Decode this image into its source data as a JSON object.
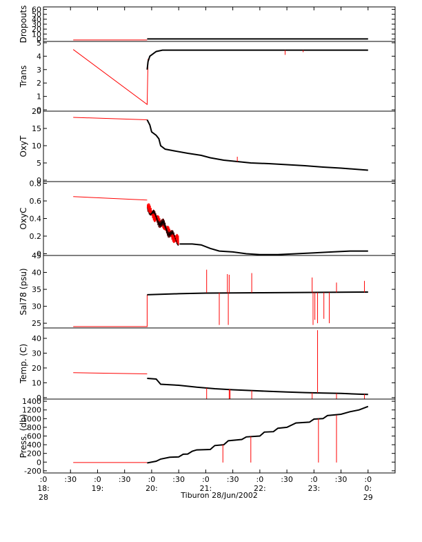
{
  "chart_data": {
    "type": "line",
    "xlabel": "Tiburon 28/Jun/2002",
    "x_ticks": [
      {
        "time": "18:00",
        "top": ":0",
        "bottom": "18:",
        "extra": "28"
      },
      {
        "time": "18:30",
        "top": ":30",
        "bottom": "",
        "extra": ""
      },
      {
        "time": "19:00",
        "top": ":0",
        "bottom": "19:",
        "extra": ""
      },
      {
        "time": "19:30",
        "top": ":30",
        "bottom": "",
        "extra": ""
      },
      {
        "time": "20:00",
        "top": ":0",
        "bottom": "20:",
        "extra": ""
      },
      {
        "time": "20:30",
        "top": ":30",
        "bottom": "",
        "extra": ""
      },
      {
        "time": "21:00",
        "top": ":0",
        "bottom": "21:",
        "extra": ""
      },
      {
        "time": "21:30",
        "top": ":30",
        "bottom": "",
        "extra": ""
      },
      {
        "time": "22:00",
        "top": ":0",
        "bottom": "22:",
        "extra": ""
      },
      {
        "time": "22:30",
        "top": ":30",
        "bottom": "",
        "extra": ""
      },
      {
        "time": "23:00",
        "top": ":0",
        "bottom": "23:",
        "extra": ""
      },
      {
        "time": "23:30",
        "top": ":30",
        "bottom": "",
        "extra": ""
      },
      {
        "time": "00:00",
        "top": ":0",
        "bottom": "0:",
        "extra": "29"
      }
    ],
    "xlim": [
      "18:00",
      "00:30"
    ],
    "colors": {
      "sparse": "#ff0000",
      "dense": "#000000"
    },
    "panels": [
      {
        "ylabel": "Dropouts",
        "ylim": [
          -5,
          65
        ],
        "yticks": [
          0,
          10,
          20,
          30,
          40,
          50,
          60
        ],
        "red": [
          [
            "18:33",
            -2
          ],
          [
            "19:55",
            -2
          ]
        ],
        "black": [
          [
            "19:55",
            0
          ],
          [
            "00:00",
            0
          ]
        ],
        "spikes": []
      },
      {
        "ylabel": "Trans",
        "ylim": [
          -0.1,
          5.1
        ],
        "yticks": [
          0,
          1,
          2,
          3,
          4,
          5
        ],
        "red": [
          [
            "18:33",
            4.5
          ],
          [
            "19:55",
            0.4
          ],
          [
            "19:56",
            3.8
          ]
        ],
        "black": [
          [
            "19:55",
            3.0
          ],
          [
            "19:56",
            3.6
          ],
          [
            "19:58",
            4.0
          ],
          [
            "20:05",
            4.35
          ],
          [
            "20:12",
            4.45
          ],
          [
            "21:00",
            4.45
          ],
          [
            "22:00",
            4.45
          ],
          [
            "00:00",
            4.45
          ]
        ],
        "spikes": [
          [
            "22:28",
            4.45,
            4.1
          ],
          [
            "22:48",
            4.45,
            4.3
          ]
        ]
      },
      {
        "ylabel": "OxyT",
        "ylim": [
          -0.4,
          20
        ],
        "yticks": [
          0,
          5,
          10,
          15,
          20
        ],
        "red": [
          [
            "18:33",
            18.2
          ],
          [
            "19:55",
            17.5
          ]
        ],
        "black": [
          [
            "19:55",
            17.5
          ],
          [
            "19:58",
            16.0
          ],
          [
            "20:00",
            14.0
          ],
          [
            "20:05",
            13.0
          ],
          [
            "20:08",
            12.0
          ],
          [
            "20:10",
            10.0
          ],
          [
            "20:15",
            9.0
          ],
          [
            "20:25",
            8.5
          ],
          [
            "20:40",
            7.8
          ],
          [
            "20:55",
            7.2
          ],
          [
            "21:05",
            6.5
          ],
          [
            "21:20",
            5.8
          ],
          [
            "21:35",
            5.4
          ],
          [
            "21:50",
            5.0
          ],
          [
            "22:10",
            4.8
          ],
          [
            "22:30",
            4.5
          ],
          [
            "22:50",
            4.2
          ],
          [
            "23:10",
            3.8
          ],
          [
            "23:30",
            3.5
          ],
          [
            "23:50",
            3.1
          ],
          [
            "00:00",
            2.9
          ]
        ],
        "spikes": [
          [
            "21:35",
            5.4,
            6.8
          ]
        ]
      },
      {
        "ylabel": "OxyC",
        "ylim": [
          -0.02,
          0.82
        ],
        "yticks": [
          0.0,
          0.2,
          0.4,
          0.6,
          0.8
        ],
        "red": [
          [
            "18:33",
            0.65
          ],
          [
            "19:55",
            0.61
          ]
        ],
        "black": [
          [
            "20:31",
            0.11
          ],
          [
            "20:45",
            0.11
          ],
          [
            "20:55",
            0.1
          ],
          [
            "21:05",
            0.06
          ],
          [
            "21:15",
            0.03
          ],
          [
            "21:30",
            0.02
          ],
          [
            "21:45",
            0.0
          ],
          [
            "22:00",
            -0.01
          ],
          [
            "22:20",
            -0.01
          ],
          [
            "22:40",
            0.0
          ],
          [
            "23:00",
            0.01
          ],
          [
            "23:20",
            0.02
          ],
          [
            "23:40",
            0.03
          ],
          [
            "00:00",
            0.03
          ]
        ],
        "noisy": {
          "start": "19:55",
          "end": "20:30",
          "from": 0.52,
          "to": 0.13,
          "amplitude": 0.08
        },
        "spikes": []
      },
      {
        "ylabel": "Sal78 (psu)",
        "ylim": [
          23.6,
          45
        ],
        "yticks": [
          25,
          30,
          35,
          40,
          45
        ],
        "red": [
          [
            "18:33",
            24.0
          ],
          [
            "19:55",
            24.0
          ],
          [
            "19:55",
            33.4
          ]
        ],
        "black": [
          [
            "19:55",
            33.4
          ],
          [
            "20:30",
            33.7
          ],
          [
            "21:00",
            33.9
          ],
          [
            "22:00",
            34.0
          ],
          [
            "23:00",
            34.1
          ],
          [
            "00:00",
            34.2
          ]
        ],
        "spikes": [
          [
            "21:01",
            34.0,
            40.8
          ],
          [
            "21:15",
            34.0,
            24.5
          ],
          [
            "21:24",
            34.0,
            39.5
          ],
          [
            "21:25",
            34.0,
            24.5
          ],
          [
            "21:26",
            34.0,
            39.3
          ],
          [
            "21:51",
            34.0,
            39.8
          ],
          [
            "22:58",
            34.1,
            38.5
          ],
          [
            "22:59",
            34.1,
            24.5
          ],
          [
            "23:01",
            34.1,
            26.0
          ],
          [
            "23:04",
            34.1,
            25.0
          ],
          [
            "23:11",
            34.1,
            26.3
          ],
          [
            "23:17",
            34.1,
            25.0
          ],
          [
            "23:25",
            34.1,
            37.0
          ],
          [
            "23:56",
            34.1,
            37.5
          ]
        ],
        "gap_spikes": []
      },
      {
        "ylabel": "Temp. (C)",
        "ylim": [
          -1,
          47
        ],
        "yticks": [
          0,
          10,
          20,
          30,
          40
        ],
        "red": [
          [
            "18:33",
            16.8
          ],
          [
            "19:55",
            16.0
          ]
        ],
        "black": [
          [
            "19:55",
            13.0
          ],
          [
            "20:05",
            12.5
          ],
          [
            "20:10",
            9.0
          ],
          [
            "20:30",
            8.3
          ],
          [
            "20:50",
            7.0
          ],
          [
            "21:10",
            6.0
          ],
          [
            "21:30",
            5.3
          ],
          [
            "21:50",
            4.8
          ],
          [
            "22:10",
            4.2
          ],
          [
            "22:30",
            3.8
          ],
          [
            "22:50",
            3.4
          ],
          [
            "23:10",
            3.1
          ],
          [
            "23:30",
            2.8
          ],
          [
            "23:50",
            2.3
          ],
          [
            "00:00",
            2.1
          ]
        ],
        "spikes": [
          [
            "21:01",
            6.5,
            -1.0
          ],
          [
            "21:26",
            5.5,
            -1.0
          ],
          [
            "21:27",
            5.5,
            -1.0
          ],
          [
            "21:51",
            4.8,
            -1.0
          ],
          [
            "22:58",
            3.3,
            -1.0
          ],
          [
            "23:04",
            3.2,
            45.5
          ],
          [
            "23:25",
            2.9,
            -1.0
          ],
          [
            "23:56",
            2.3,
            -1.0
          ]
        ]
      },
      {
        "ylabel": "Press. (db)",
        "ylim": [
          -250,
          1450
        ],
        "yticks": [
          -200,
          0,
          200,
          400,
          600,
          800,
          1000,
          1200,
          1400
        ],
        "red": [
          [
            "18:33",
            -10
          ],
          [
            "19:55",
            -10
          ]
        ],
        "black": [
          [
            "19:55",
            -20
          ],
          [
            "20:05",
            20
          ],
          [
            "20:10",
            70
          ],
          [
            "20:20",
            110
          ],
          [
            "20:30",
            120
          ],
          [
            "20:35",
            180
          ],
          [
            "20:40",
            185
          ],
          [
            "20:45",
            250
          ],
          [
            "20:50",
            280
          ],
          [
            "21:05",
            290
          ],
          [
            "21:10",
            380
          ],
          [
            "21:20",
            400
          ],
          [
            "21:25",
            490
          ],
          [
            "21:40",
            520
          ],
          [
            "21:45",
            580
          ],
          [
            "22:00",
            600
          ],
          [
            "22:05",
            690
          ],
          [
            "22:15",
            700
          ],
          [
            "22:20",
            780
          ],
          [
            "22:30",
            800
          ],
          [
            "22:40",
            900
          ],
          [
            "22:55",
            920
          ],
          [
            "23:00",
            990
          ],
          [
            "23:10",
            1000
          ],
          [
            "23:15",
            1070
          ],
          [
            "23:30",
            1100
          ],
          [
            "23:40",
            1160
          ],
          [
            "23:50",
            1200
          ],
          [
            "00:00",
            1280
          ]
        ],
        "spikes": [
          [
            "21:19",
            400,
            -10
          ],
          [
            "21:50",
            590,
            -10
          ],
          [
            "23:05",
            1000,
            -10
          ],
          [
            "23:25",
            1080,
            -10
          ]
        ]
      }
    ]
  }
}
